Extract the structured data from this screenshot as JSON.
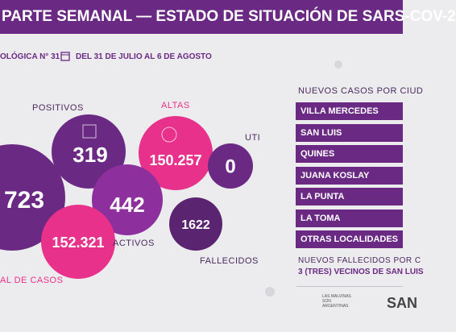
{
  "header": {
    "title": "PARTE SEMANAL — ESTADO DE SITUACIÓN DE SARS-COV-2",
    "week": "OLÓGICA N° 31",
    "dates": "DEL 31 DE JULIO AL 6 DE AGOSTO"
  },
  "bubbles": {
    "total": {
      "value": "723",
      "label": "AL DE CASOS"
    },
    "positivos": {
      "label": "POSITIVOS",
      "value": "319"
    },
    "altas": {
      "label": "ALTAS",
      "value": "150.257"
    },
    "uti": {
      "label": "UTI",
      "value": "0"
    },
    "activos": {
      "value": "442",
      "label": "ACTIVOS"
    },
    "recuperados": {
      "value": "152.321"
    },
    "fallecidos": {
      "value": "1622",
      "label": "FALLECIDOS"
    }
  },
  "panel": {
    "title": "NUEVOS CASOS POR CIUD",
    "cities": [
      "VILLA MERCEDES",
      "SAN LUIS",
      "QUINES",
      "JUANA KOSLAY",
      "LA PUNTA",
      "LA TOMA",
      "OTRAS LOCALIDADES"
    ],
    "deaths_title": "NUEVOS FALLECIDOS POR C",
    "deaths_text": "3 (TRES) VECINOS DE SAN LUIS"
  },
  "footer": {
    "malvinas": "LAS MALVINAS SON ARGENTINAS",
    "logo": "SAN"
  }
}
